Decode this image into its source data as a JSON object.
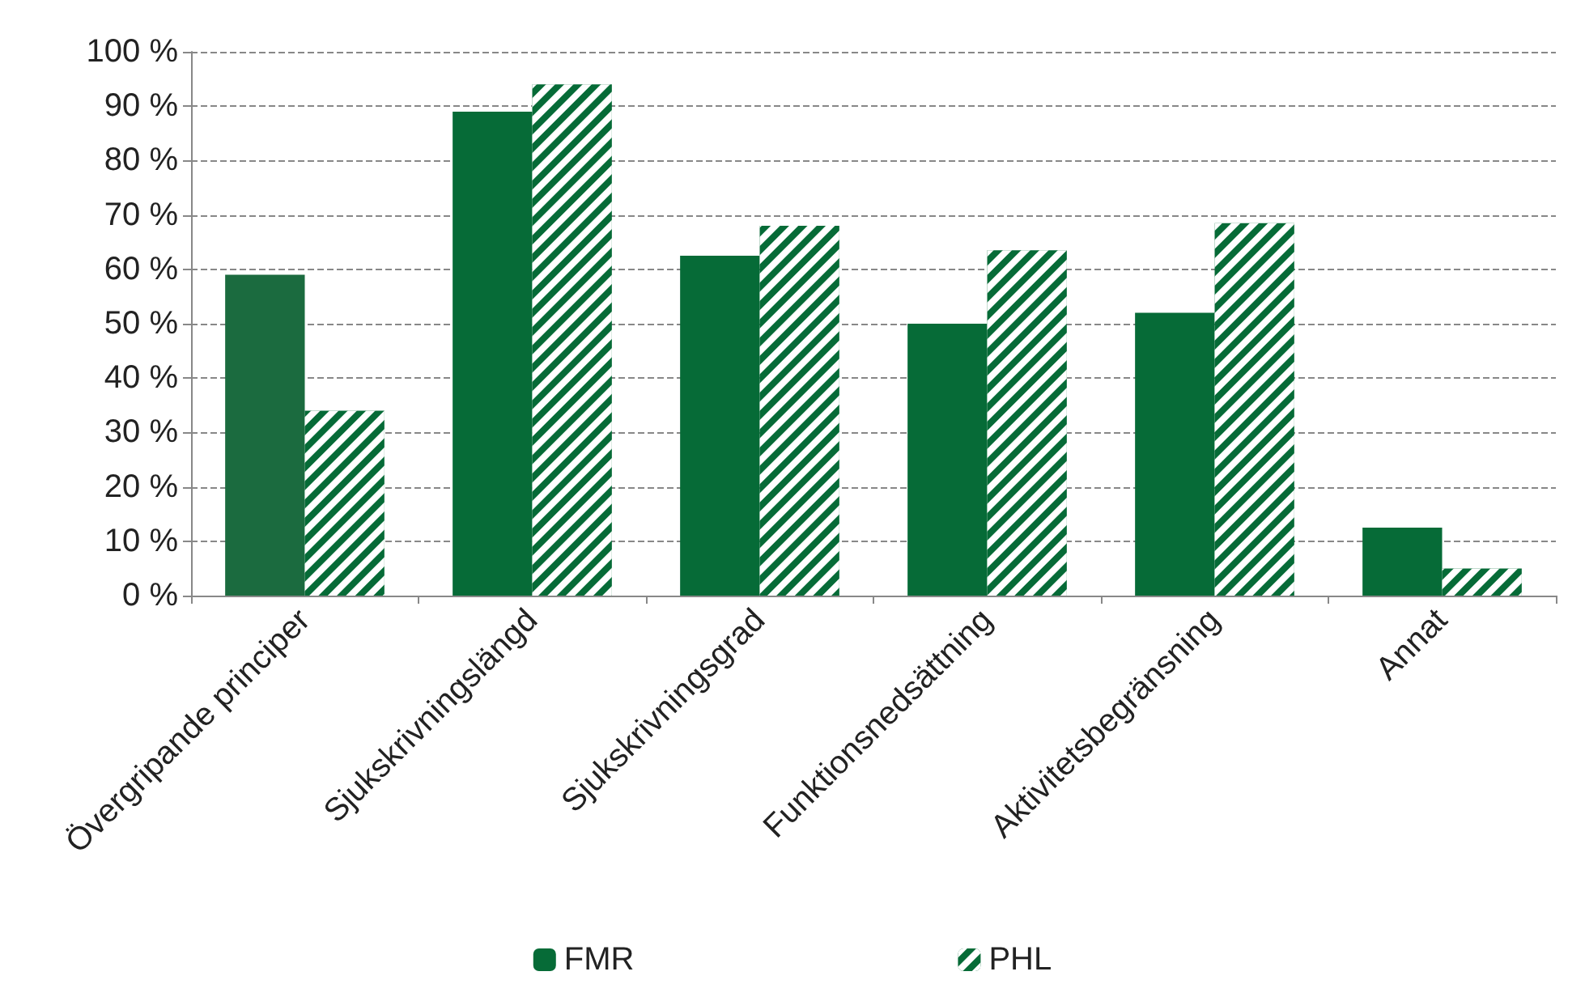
{
  "chart_data": {
    "type": "bar",
    "categories": [
      "Övergripande principer",
      "Sjukskrivningslängd",
      "Sjukskrivningsgrad",
      "Funktionsnedsättning",
      "Aktivitetsbegränsning",
      "Annat"
    ],
    "series": [
      {
        "name": "FMR",
        "color": "#066b37",
        "colors": [
          "#1b6b3f",
          "#066b37",
          "#066b37",
          "#066b37",
          "#066b37",
          "#066b37"
        ],
        "values": [
          59,
          89,
          62.5,
          50,
          52,
          12.5
        ]
      },
      {
        "name": "PHL",
        "color": "#066b37",
        "values": [
          34,
          94,
          68,
          63.5,
          68.5,
          5
        ]
      }
    ],
    "ylim": [
      0,
      100
    ],
    "yticks": [
      {
        "value": 0,
        "label": "0 %"
      },
      {
        "value": 10,
        "label": "10 %"
      },
      {
        "value": 20,
        "label": "20 %"
      },
      {
        "value": 30,
        "label": "30 %"
      },
      {
        "value": 40,
        "label": "40 %"
      },
      {
        "value": 50,
        "label": "50 %"
      },
      {
        "value": 60,
        "label": "60 %"
      },
      {
        "value": 70,
        "label": "70 %"
      },
      {
        "value": 80,
        "label": "80 %"
      },
      {
        "value": 90,
        "label": "90 %"
      },
      {
        "value": 100,
        "label": "100 %"
      }
    ],
    "grid": "y",
    "legend": "bottom"
  }
}
